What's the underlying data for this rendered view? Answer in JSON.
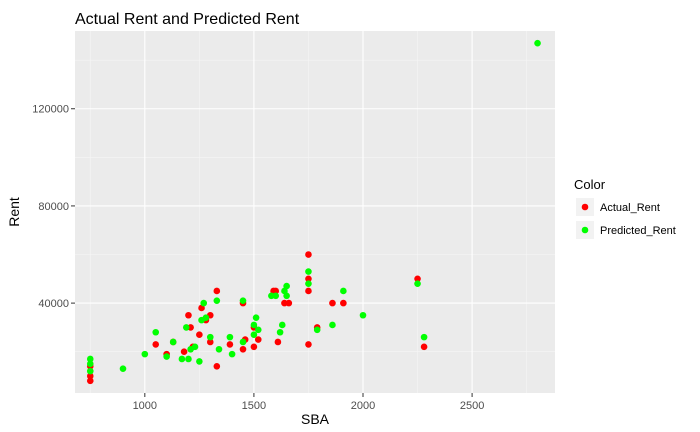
{
  "chart_data": {
    "type": "scatter",
    "title": "Actual Rent and Predicted Rent",
    "xlabel": "SBA",
    "ylabel": "Rent",
    "xlim": [
      680,
      2880
    ],
    "ylim": [
      3000,
      152000
    ],
    "x_ticks": [
      1000,
      1500,
      2000,
      2500
    ],
    "x_tick_labels": [
      "1000",
      "1500",
      "2000",
      "2500"
    ],
    "y_ticks": [
      40000,
      80000,
      120000
    ],
    "y_tick_labels": [
      "40000",
      "80000",
      "120000"
    ],
    "grid": true,
    "panel_background": "#ebebeb",
    "legend": {
      "title": "Color",
      "position": "right",
      "entries": [
        "Actual_Rent",
        "Predicted_Rent"
      ]
    },
    "series": [
      {
        "name": "Actual_Rent",
        "color": "#ff0000",
        "points": [
          [
            750,
            8000
          ],
          [
            750,
            10000
          ],
          [
            750,
            14000
          ],
          [
            1050,
            23000
          ],
          [
            1100,
            19000
          ],
          [
            1130,
            24000
          ],
          [
            1180,
            20000
          ],
          [
            1200,
            35000
          ],
          [
            1210,
            30000
          ],
          [
            1220,
            22000
          ],
          [
            1250,
            27000
          ],
          [
            1260,
            38000
          ],
          [
            1280,
            33000
          ],
          [
            1300,
            35000
          ],
          [
            1300,
            24000
          ],
          [
            1330,
            45000
          ],
          [
            1330,
            14000
          ],
          [
            1390,
            23000
          ],
          [
            1450,
            21000
          ],
          [
            1450,
            40000
          ],
          [
            1460,
            25000
          ],
          [
            1500,
            22000
          ],
          [
            1500,
            30000
          ],
          [
            1520,
            25000
          ],
          [
            1590,
            45000
          ],
          [
            1600,
            45000
          ],
          [
            1610,
            24000
          ],
          [
            1640,
            40000
          ],
          [
            1660,
            40000
          ],
          [
            1750,
            60000
          ],
          [
            1750,
            50000
          ],
          [
            1750,
            45000
          ],
          [
            1750,
            23000
          ],
          [
            1790,
            30000
          ],
          [
            1860,
            40000
          ],
          [
            1910,
            40000
          ],
          [
            2250,
            50000
          ],
          [
            2280,
            22000
          ]
        ]
      },
      {
        "name": "Predicted_Rent",
        "color": "#00ff00",
        "points": [
          [
            750,
            17000
          ],
          [
            750,
            15000
          ],
          [
            750,
            12000
          ],
          [
            900,
            13000
          ],
          [
            1000,
            19000
          ],
          [
            1050,
            28000
          ],
          [
            1100,
            18000
          ],
          [
            1130,
            24000
          ],
          [
            1170,
            17000
          ],
          [
            1190,
            30000
          ],
          [
            1200,
            17000
          ],
          [
            1210,
            21000
          ],
          [
            1230,
            22000
          ],
          [
            1250,
            16000
          ],
          [
            1260,
            33000
          ],
          [
            1270,
            40000
          ],
          [
            1280,
            34000
          ],
          [
            1300,
            26000
          ],
          [
            1330,
            41000
          ],
          [
            1340,
            21000
          ],
          [
            1390,
            26000
          ],
          [
            1400,
            19000
          ],
          [
            1450,
            41000
          ],
          [
            1450,
            24000
          ],
          [
            1500,
            31000
          ],
          [
            1500,
            27000
          ],
          [
            1510,
            34000
          ],
          [
            1520,
            29000
          ],
          [
            1580,
            43000
          ],
          [
            1600,
            43000
          ],
          [
            1620,
            28000
          ],
          [
            1630,
            31000
          ],
          [
            1640,
            45000
          ],
          [
            1650,
            43000
          ],
          [
            1650,
            47000
          ],
          [
            1750,
            53000
          ],
          [
            1750,
            48000
          ],
          [
            1790,
            29000
          ],
          [
            1860,
            31000
          ],
          [
            1910,
            45000
          ],
          [
            2000,
            35000
          ],
          [
            2250,
            48000
          ],
          [
            2280,
            26000
          ],
          [
            2800,
            147000
          ]
        ]
      }
    ]
  }
}
